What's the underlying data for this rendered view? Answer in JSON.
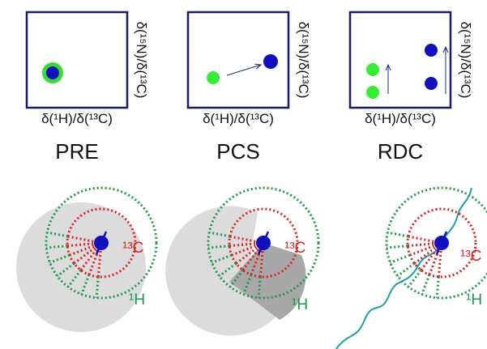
{
  "spectra": [
    {
      "title": "PRE",
      "x_label": "δ(¹H)/δ(¹³C)",
      "y_label": "δ(¹⁵N)/δ(¹³C)"
    },
    {
      "title": "PCS",
      "x_label": "δ(¹H)/δ(¹³C)",
      "y_label": "δ(¹⁵N)/δ(¹³C)"
    },
    {
      "title": "RDC",
      "x_label": "δ(¹H)/δ(¹³C)",
      "y_label": "δ(¹⁵N)/δ(¹³C)"
    }
  ],
  "models": [
    {
      "carbon_label": "¹³C",
      "proton_label": "¹H"
    },
    {
      "carbon_label": "¹³C",
      "proton_label": "¹H"
    },
    {
      "carbon_label": "¹³C",
      "proton_label": "¹H"
    }
  ]
}
